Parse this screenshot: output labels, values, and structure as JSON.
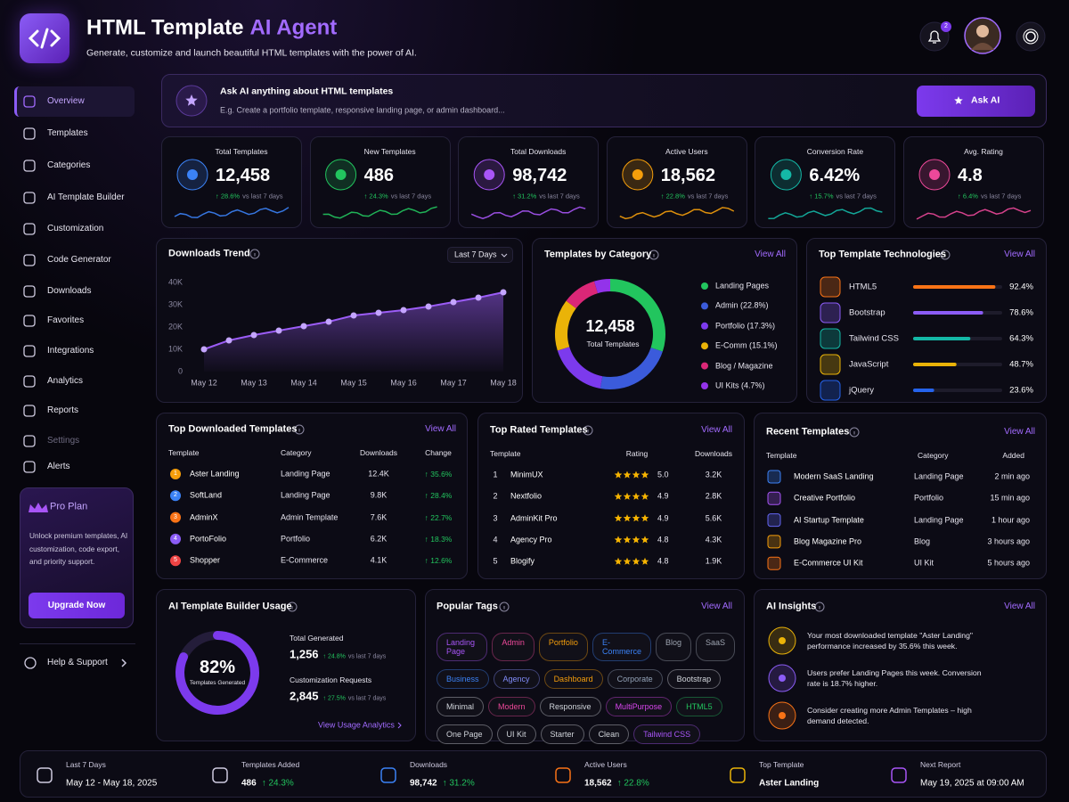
{
  "header": {
    "title": "HTML Template",
    "title_accent": "AI Agent",
    "subtitle": "Generate, customize and launch beautiful HTML templates with the power of AI.",
    "notifications": 2
  },
  "nav": {
    "items": [
      "Overview",
      "Templates",
      "Categories",
      "AI Template Builder",
      "Customization",
      "Code Generator",
      "Downloads",
      "Favorites",
      "Integrations",
      "Analytics",
      "Reports",
      "Settings",
      "Alerts"
    ],
    "active": 0
  },
  "pro_plan": {
    "title": "Pro Plan",
    "text": "Unlock premium templates, AI customization, code export, and priority support.",
    "button": "Upgrade Now"
  },
  "help": "Help & Support",
  "ask": {
    "title": "Ask AI anything about HTML templates",
    "placeholder": "E.g. Create a portfolio template, responsive landing page, or admin dashboard...",
    "button": "Ask AI"
  },
  "stats": [
    {
      "label": "Total Templates",
      "value": "12,458",
      "change": "↑ 28.6%",
      "note": "vs last 7 days",
      "color": "#3b82f6"
    },
    {
      "label": "New Templates",
      "value": "486",
      "change": "↑ 24.3%",
      "note": "vs last 7 days",
      "color": "#22c55e"
    },
    {
      "label": "Total Downloads",
      "value": "98,742",
      "change": "↑ 31.2%",
      "note": "vs last 7 days",
      "color": "#a855f7"
    },
    {
      "label": "Active Users",
      "value": "18,562",
      "change": "↑ 22.8%",
      "note": "vs last 7 days",
      "color": "#f59e0b"
    },
    {
      "label": "Conversion Rate",
      "value": "6.42%",
      "change": "↑ 15.7%",
      "note": "vs last 7 days",
      "color": "#14b8a6"
    },
    {
      "label": "Avg. Rating",
      "value": "4.8",
      "change": "↑ 6.4%",
      "note": "vs last 7 days",
      "color": "#ec4899"
    }
  ],
  "downloads_trend": {
    "title": "Downloads Trend",
    "period": "Last 7 Days",
    "chart": {
      "type": "line",
      "categories": [
        "May 12",
        null,
        "May 13",
        null,
        "May 14",
        null,
        "May 15",
        null,
        "May 16",
        null,
        "May 17",
        null,
        "May 18"
      ],
      "values": [
        10000,
        14000,
        16400,
        18400,
        20400,
        22400,
        25200,
        26400,
        27600,
        29200,
        31200,
        33200,
        35600
      ],
      "ylim": [
        0,
        40000
      ],
      "yticks": [
        0,
        {
          "value": 10000,
          "label": "10K"
        },
        {
          "value": 20000,
          "label": "20K"
        },
        {
          "value": 30000,
          "label": "30K"
        },
        {
          "value": 40000,
          "label": "40K"
        }
      ],
      "color": "#9b5cf6"
    }
  },
  "categories": {
    "title": "Templates by Category",
    "view_all": "View All",
    "center_value": "12,458",
    "center_label": "Total Templates",
    "chart": {
      "type": "pie",
      "items": [
        {
          "label": "Landing Pages",
          "value": 30.1,
          "color": "#22c55e"
        },
        {
          "label": "Admin (22.8%)",
          "value": 22.8,
          "color": "#3b5bdb"
        },
        {
          "label": "Portfolio (17.3%)",
          "value": 17.3,
          "color": "#7c3aed"
        },
        {
          "label": "E-Comm (15.1%)",
          "value": 15.1,
          "color": "#eab308"
        },
        {
          "label": "Blog / Magazine",
          "value": 10,
          "color": "#db2777"
        },
        {
          "label": "UI Kits (4.7%)",
          "value": 4.7,
          "color": "#9333ea"
        }
      ]
    }
  },
  "technologies": {
    "title": "Top Template Technologies",
    "view_all": "View All",
    "xlim": [
      0,
      100
    ],
    "items": [
      {
        "name": "HTML5",
        "value": 92.4,
        "value_label": "92.4%",
        "color": "#f97316"
      },
      {
        "name": "Bootstrap",
        "value": 78.6,
        "value_label": "78.6%",
        "color": "#8b5cf6"
      },
      {
        "name": "Tailwind CSS",
        "value": 64.3,
        "value_label": "64.3%",
        "color": "#14b8a6"
      },
      {
        "name": "JavaScript",
        "value": 48.7,
        "value_label": "48.7%",
        "color": "#eab308"
      },
      {
        "name": "jQuery",
        "value": 23.6,
        "value_label": "23.6%",
        "color": "#2563eb"
      }
    ]
  },
  "top_downloaded": {
    "title": "Top Downloaded Templates",
    "view_all": "View All",
    "columns": [
      "Template",
      "Category",
      "Downloads",
      "Change"
    ],
    "rows": [
      [
        "1",
        "Aster Landing",
        "Landing Page",
        "12.4K",
        "↑ 35.6%"
      ],
      [
        "2",
        "SoftLand",
        "Landing Page",
        "9.8K",
        "↑ 28.4%"
      ],
      [
        "3",
        "AdminX",
        "Admin Template",
        "7.6K",
        "↑ 22.7%"
      ],
      [
        "4",
        "PortoFolio",
        "Portfolio",
        "6.2K",
        "↑ 18.3%"
      ],
      [
        "5",
        "Shopper",
        "E-Commerce",
        "4.1K",
        "↑ 12.6%"
      ]
    ]
  },
  "top_rated": {
    "title": "Top Rated Templates",
    "view_all": "View All",
    "columns": [
      "Template",
      "Rating",
      "Downloads"
    ],
    "rows": [
      [
        "1",
        "MinimUX",
        "5.0",
        "3.2K"
      ],
      [
        "2",
        "Nextfolio",
        "4.9",
        "2.8K"
      ],
      [
        "3",
        "AdminKit Pro",
        "4.9",
        "5.6K"
      ],
      [
        "4",
        "Agency Pro",
        "4.8",
        "4.3K"
      ],
      [
        "5",
        "Blogify",
        "4.8",
        "1.9K"
      ]
    ]
  },
  "recent": {
    "title": "Recent Templates",
    "view_all": "View All",
    "columns": [
      "Template",
      "Category",
      "Added"
    ],
    "rows": [
      [
        "Modern SaaS Landing",
        "Landing Page",
        "2 min ago"
      ],
      [
        "Creative Portfolio",
        "Portfolio",
        "15 min ago"
      ],
      [
        "AI Startup Template",
        "Landing Page",
        "1 hour ago"
      ],
      [
        "Blog Magazine Pro",
        "Blog",
        "3 hours ago"
      ],
      [
        "E-Commerce UI Kit",
        "UI Kit",
        "5 hours ago"
      ]
    ]
  },
  "ai_usage": {
    "title": "AI Template Builder Usage",
    "percent": 82,
    "percent_label": "82%",
    "ring_label": "Templates Generated",
    "metrics": [
      {
        "label": "Total Generated",
        "value": "1,256",
        "change": "↑ 24.8%",
        "note": "vs last 7 days"
      },
      {
        "label": "Customization Requests",
        "value": "2,845",
        "change": "↑ 27.5%",
        "note": "vs last 7 days"
      }
    ],
    "link": "View Usage Analytics"
  },
  "tags": {
    "title": "Popular Tags",
    "view_all": "View All",
    "rows": [
      [
        {
          "text": "Landing Page",
          "color": "#a855f7"
        },
        {
          "text": "Admin",
          "color": "#ec4899"
        },
        {
          "text": "Portfolio",
          "color": "#f59e0b"
        },
        {
          "text": "E-Commerce",
          "color": "#3b82f6"
        },
        {
          "text": "Blog",
          "color": "#9ca3af"
        },
        {
          "text": "SaaS",
          "color": "#9ca3af"
        }
      ],
      [
        {
          "text": "Business",
          "color": "#3b82f6"
        },
        {
          "text": "Agency",
          "color": "#818cf8"
        },
        {
          "text": "Dashboard",
          "color": "#f59e0b"
        },
        {
          "text": "Corporate",
          "color": "#94a3b8"
        },
        {
          "text": "Bootstrap",
          "color": "#d1d5db"
        }
      ],
      [
        {
          "text": "Minimal",
          "color": "#d1d5db"
        },
        {
          "text": "Modern",
          "color": "#ec4899"
        },
        {
          "text": "Responsive",
          "color": "#d1d5db"
        },
        {
          "text": "MultiPurpose",
          "color": "#d946ef"
        },
        {
          "text": "HTML5",
          "color": "#22c55e"
        }
      ],
      [
        {
          "text": "One Page",
          "color": "#d1d5db"
        },
        {
          "text": "UI Kit",
          "color": "#d1d5db"
        },
        {
          "text": "Starter",
          "color": "#d1d5db"
        },
        {
          "text": "Clean",
          "color": "#d1d5db"
        },
        {
          "text": "Tailwind CSS",
          "color": "#a855f7"
        }
      ]
    ]
  },
  "insights": {
    "title": "AI Insights",
    "view_all": "View All",
    "items": [
      {
        "text": "Your most downloaded template \"Aster Landing\" performance increased by 35.6% this week.",
        "color": "#eab308"
      },
      {
        "text": "Users prefer Landing Pages this week. Conversion rate is 18.7% higher.",
        "color": "#8b5cf6"
      },
      {
        "text": "Consider creating more Admin Templates – high demand detected.",
        "color": "#f97316"
      }
    ]
  },
  "footer": [
    {
      "label": "Last 7 Days",
      "value": "May 12 - May 18, 2025"
    },
    {
      "label": "Templates Added",
      "value": "486",
      "change": "↑ 24.3%"
    },
    {
      "label": "Downloads",
      "value": "98,742",
      "change": "↑ 31.2%"
    },
    {
      "label": "Active Users",
      "value": "18,562",
      "change": "↑ 22.8%"
    },
    {
      "label": "Top Template",
      "value": "Aster Landing"
    },
    {
      "label": "Next Report",
      "value": "May 19, 2025 at 09:00 AM"
    }
  ]
}
